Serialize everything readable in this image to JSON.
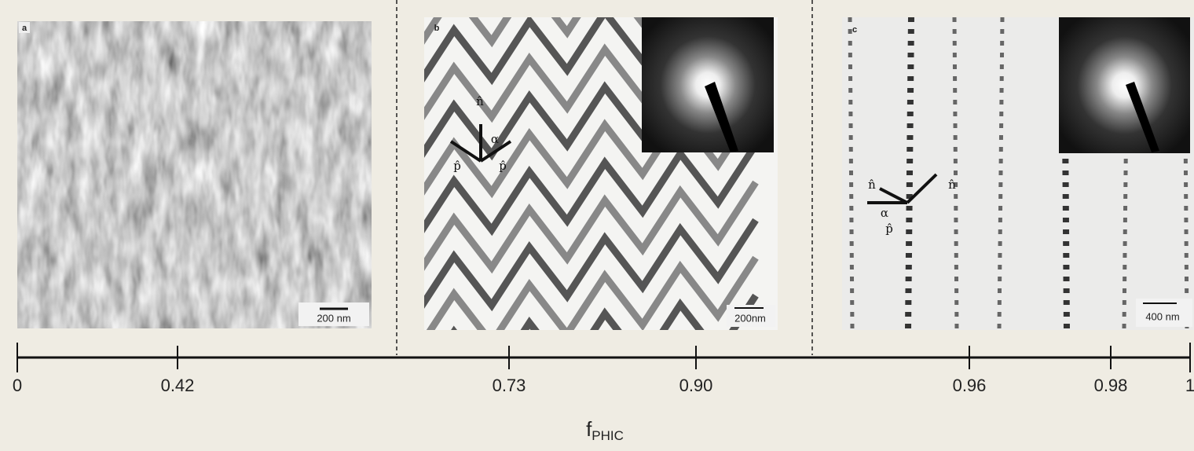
{
  "panels": [
    {
      "label": "a",
      "scale_bar": "200 nm"
    },
    {
      "label": "b",
      "scale_bar": "200nm",
      "annotations": [
        "n̂",
        "α",
        "p̂",
        "p̂"
      ]
    },
    {
      "label": "c",
      "scale_bar": "400 nm",
      "annotations": [
        "n̂",
        "n̂",
        "α",
        "p̂"
      ]
    }
  ],
  "axis": {
    "ticks": [
      "0",
      "0.42",
      "0.73",
      "0.90",
      "0.96",
      "0.98",
      "1"
    ],
    "label": {
      "symbol": "f",
      "subscript": "PHIC"
    }
  }
}
